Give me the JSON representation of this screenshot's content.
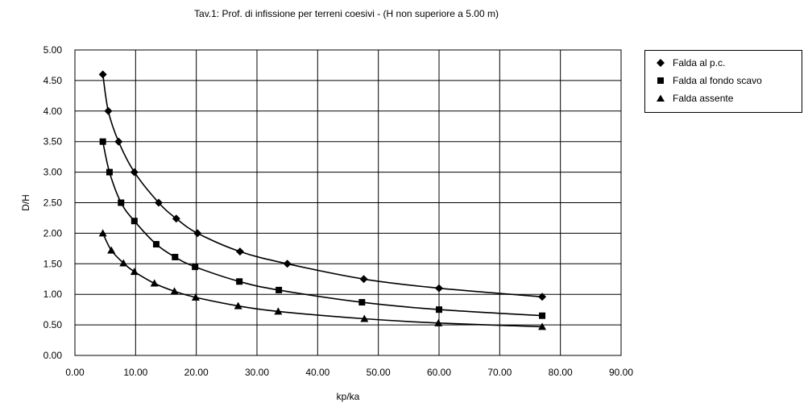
{
  "chart_data": {
    "type": "line",
    "title": "Tav.1: Prof. di infissione per terreni coesivi - (H non superiore a 5.00 m)",
    "xlabel": "kp/ka",
    "ylabel": "D/H",
    "xlim": [
      0,
      90
    ],
    "ylim": [
      0,
      5
    ],
    "xticks": [
      "0.00",
      "10.00",
      "20.00",
      "30.00",
      "40.00",
      "50.00",
      "60.00",
      "70.00",
      "80.00",
      "90.00"
    ],
    "yticks": [
      "0.00",
      "0.50",
      "1.00",
      "1.50",
      "2.00",
      "2.50",
      "3.00",
      "3.50",
      "4.00",
      "4.50",
      "5.00"
    ],
    "grid": true,
    "legend_position": "right",
    "series": [
      {
        "name": "Falda al p.c.",
        "marker": "diamond",
        "points": [
          [
            4.6,
            4.6
          ],
          [
            5.5,
            4.0
          ],
          [
            7.2,
            3.5
          ],
          [
            9.8,
            3.0
          ],
          [
            13.8,
            2.5
          ],
          [
            16.7,
            2.24
          ],
          [
            20.2,
            2.0
          ],
          [
            27.2,
            1.7
          ],
          [
            35.0,
            1.5
          ],
          [
            47.6,
            1.25
          ],
          [
            60.0,
            1.1
          ],
          [
            77.0,
            0.96
          ]
        ]
      },
      {
        "name": "Falda al fondo scavo",
        "marker": "square",
        "points": [
          [
            4.6,
            3.5
          ],
          [
            5.7,
            3.0
          ],
          [
            7.6,
            2.5
          ],
          [
            9.8,
            2.2
          ],
          [
            13.4,
            1.82
          ],
          [
            16.5,
            1.61
          ],
          [
            19.8,
            1.45
          ],
          [
            27.1,
            1.21
          ],
          [
            33.6,
            1.07
          ],
          [
            47.3,
            0.87
          ],
          [
            60.0,
            0.75
          ],
          [
            77.0,
            0.65
          ]
        ]
      },
      {
        "name": "Falda assente",
        "marker": "triangle",
        "points": [
          [
            4.6,
            2.0
          ],
          [
            6.0,
            1.72
          ],
          [
            8.0,
            1.51
          ],
          [
            9.8,
            1.37
          ],
          [
            13.1,
            1.18
          ],
          [
            16.4,
            1.05
          ],
          [
            19.9,
            0.95
          ],
          [
            26.9,
            0.81
          ],
          [
            33.5,
            0.72
          ],
          [
            47.7,
            0.6
          ],
          [
            59.9,
            0.53
          ],
          [
            77.0,
            0.47
          ]
        ]
      }
    ]
  }
}
